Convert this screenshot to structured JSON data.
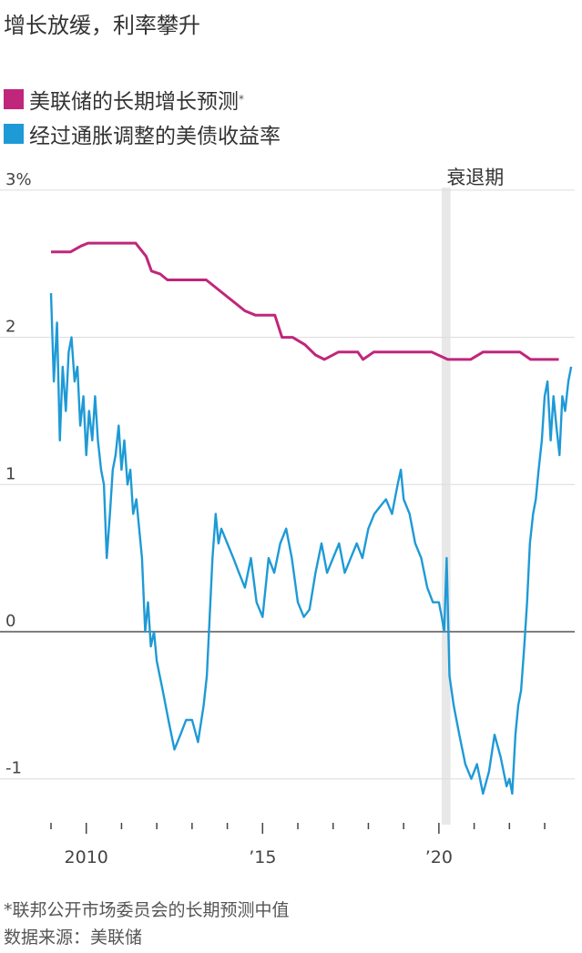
{
  "title": "增长放缓，利率攀升",
  "legend": [
    {
      "label": "美联储的长期增长预测",
      "marker": "*",
      "color": "#c0267b"
    },
    {
      "label": "经过通胀调整的美债收益率",
      "color": "#1e9ad6"
    }
  ],
  "footnote": "*联邦公开市场委员会的长期预测中值",
  "source": "数据来源：美联储",
  "chart_data": {
    "type": "line",
    "ylim": [
      -1.3,
      3
    ],
    "xlim": [
      2009,
      2023.8
    ],
    "yticks": [
      {
        "value": 3,
        "label": "3%"
      },
      {
        "value": 2,
        "label": "2"
      },
      {
        "value": 1,
        "label": "1"
      },
      {
        "value": 0,
        "label": "0"
      },
      {
        "value": -1,
        "label": "-1"
      }
    ],
    "xticks": [
      {
        "value": 2010,
        "label": "2010"
      },
      {
        "value": 2015,
        "label": "’15"
      },
      {
        "value": 2020,
        "label": "’20"
      }
    ],
    "annotation": {
      "label": "衰退期",
      "x_start": 2020.08,
      "x_end": 2020.33
    },
    "series": [
      {
        "name": "美联储的长期增长预测",
        "color": "#c0267b",
        "x": [
          2009.0,
          2009.55,
          2009.85,
          2010.05,
          2011.4,
          2011.7,
          2011.85,
          2012.1,
          2012.3,
          2013.4,
          2014.5,
          2014.8,
          2015.35,
          2015.55,
          2015.85,
          2016.2,
          2016.5,
          2016.75,
          2017.15,
          2017.7,
          2017.85,
          2018.15,
          2019.8,
          2020.25,
          2020.9,
          2021.25,
          2022.3,
          2022.6,
          2023.4
        ],
        "y": [
          2.58,
          2.58,
          2.62,
          2.64,
          2.64,
          2.55,
          2.45,
          2.43,
          2.39,
          2.39,
          2.18,
          2.15,
          2.15,
          2.0,
          2.0,
          1.95,
          1.88,
          1.85,
          1.9,
          1.9,
          1.85,
          1.9,
          1.9,
          1.85,
          1.85,
          1.9,
          1.9,
          1.85,
          1.85
        ]
      },
      {
        "name": "经过通胀调整的美债收益率",
        "color": "#1e9ad6",
        "x": [
          2009.0,
          2009.08,
          2009.17,
          2009.25,
          2009.33,
          2009.42,
          2009.5,
          2009.58,
          2009.67,
          2009.75,
          2009.83,
          2009.92,
          2010.0,
          2010.08,
          2010.17,
          2010.25,
          2010.33,
          2010.42,
          2010.5,
          2010.58,
          2010.67,
          2010.75,
          2010.83,
          2010.92,
          2011.0,
          2011.08,
          2011.17,
          2011.25,
          2011.33,
          2011.42,
          2011.5,
          2011.58,
          2011.67,
          2011.75,
          2011.83,
          2011.92,
          2012.0,
          2012.17,
          2012.33,
          2012.5,
          2012.67,
          2012.83,
          2013.0,
          2013.17,
          2013.33,
          2013.42,
          2013.5,
          2013.58,
          2013.67,
          2013.75,
          2013.83,
          2014.0,
          2014.17,
          2014.33,
          2014.5,
          2014.67,
          2014.83,
          2015.0,
          2015.17,
          2015.33,
          2015.5,
          2015.67,
          2015.83,
          2016.0,
          2016.17,
          2016.33,
          2016.5,
          2016.67,
          2016.83,
          2017.0,
          2017.17,
          2017.33,
          2017.5,
          2017.67,
          2017.83,
          2018.0,
          2018.17,
          2018.33,
          2018.5,
          2018.67,
          2018.83,
          2018.92,
          2019.0,
          2019.17,
          2019.33,
          2019.5,
          2019.67,
          2019.83,
          2020.0,
          2020.08,
          2020.15,
          2020.22,
          2020.3,
          2020.42,
          2020.58,
          2020.75,
          2020.92,
          2021.08,
          2021.25,
          2021.42,
          2021.58,
          2021.75,
          2021.92,
          2022.0,
          2022.08,
          2022.17,
          2022.25,
          2022.33,
          2022.42,
          2022.5,
          2022.58,
          2022.67,
          2022.75,
          2022.83,
          2022.92,
          2023.0,
          2023.08,
          2023.17,
          2023.25,
          2023.33,
          2023.42,
          2023.5,
          2023.58,
          2023.67,
          2023.75
        ],
        "y": [
          2.3,
          1.7,
          2.1,
          1.3,
          1.8,
          1.5,
          1.9,
          2.0,
          1.7,
          1.8,
          1.4,
          1.6,
          1.2,
          1.5,
          1.3,
          1.6,
          1.3,
          1.1,
          1.0,
          0.5,
          0.8,
          1.1,
          1.2,
          1.4,
          1.1,
          1.3,
          1.0,
          1.1,
          0.8,
          0.9,
          0.7,
          0.5,
          0.0,
          0.2,
          -0.1,
          0.0,
          -0.2,
          -0.4,
          -0.6,
          -0.8,
          -0.7,
          -0.6,
          -0.6,
          -0.75,
          -0.5,
          -0.3,
          0.1,
          0.5,
          0.8,
          0.6,
          0.7,
          0.6,
          0.5,
          0.4,
          0.3,
          0.5,
          0.2,
          0.1,
          0.5,
          0.4,
          0.6,
          0.7,
          0.5,
          0.2,
          0.1,
          0.15,
          0.4,
          0.6,
          0.4,
          0.5,
          0.6,
          0.4,
          0.5,
          0.6,
          0.5,
          0.7,
          0.8,
          0.85,
          0.9,
          0.8,
          1.0,
          1.1,
          0.9,
          0.8,
          0.6,
          0.5,
          0.3,
          0.2,
          0.2,
          0.1,
          0.0,
          0.5,
          -0.3,
          -0.5,
          -0.7,
          -0.9,
          -1.0,
          -0.9,
          -1.1,
          -0.95,
          -0.7,
          -0.85,
          -1.05,
          -1.0,
          -1.1,
          -0.7,
          -0.5,
          -0.4,
          -0.1,
          0.2,
          0.6,
          0.8,
          0.9,
          1.1,
          1.3,
          1.6,
          1.7,
          1.3,
          1.6,
          1.4,
          1.2,
          1.6,
          1.5,
          1.7,
          1.8
        ]
      }
    ]
  }
}
